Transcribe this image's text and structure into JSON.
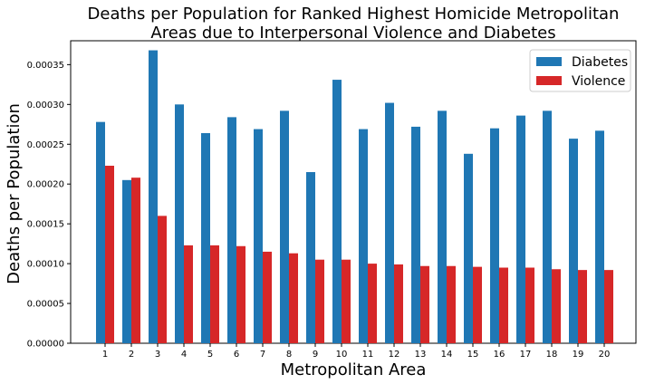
{
  "chart_data": {
    "type": "bar",
    "title_line1": "Deaths per Population for Ranked Highest Homicide Metropolitan",
    "title_line2": "Areas due to Interpersonal Violence and Diabetes",
    "xlabel": "Metropolitan Area",
    "ylabel": "Deaths per Population",
    "categories": [
      "1",
      "2",
      "3",
      "4",
      "5",
      "6",
      "7",
      "8",
      "9",
      "10",
      "11",
      "12",
      "13",
      "14",
      "15",
      "16",
      "17",
      "18",
      "19",
      "20"
    ],
    "ylim": [
      0,
      0.00038
    ],
    "yticks": [
      0,
      5e-05,
      0.0001,
      0.00015,
      0.0002,
      0.00025,
      0.0003,
      0.00035
    ],
    "ytick_labels": [
      "0.00000",
      "0.00005",
      "0.00010",
      "0.00015",
      "0.00020",
      "0.00025",
      "0.00030",
      "0.00035"
    ],
    "series": [
      {
        "name": "Diabetes",
        "color": "#1f77b4",
        "values": [
          0.000278,
          0.000205,
          0.000368,
          0.0003,
          0.000264,
          0.000284,
          0.000269,
          0.000292,
          0.000215,
          0.000331,
          0.000269,
          0.000302,
          0.000272,
          0.000292,
          0.000238,
          0.00027,
          0.000286,
          0.000292,
          0.000257,
          0.000267
        ]
      },
      {
        "name": "Violence",
        "color": "#d62728",
        "values": [
          0.000223,
          0.000208,
          0.00016,
          0.000123,
          0.000123,
          0.000122,
          0.000115,
          0.000113,
          0.000105,
          0.000105,
          0.0001,
          9.9e-05,
          9.7e-05,
          9.7e-05,
          9.6e-05,
          9.5e-05,
          9.5e-05,
          9.3e-05,
          9.2e-05,
          9.2e-05
        ]
      }
    ],
    "legend_position": "top-right",
    "grid": false
  }
}
